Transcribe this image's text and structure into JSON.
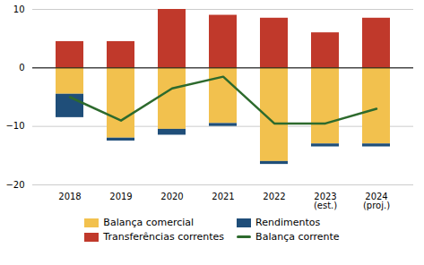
{
  "chart_data": {
    "type": "bar",
    "categories": [
      "2018",
      "2019",
      "2020",
      "2021",
      "2022",
      "2023\n(est.)",
      "2024\n(proj.)"
    ],
    "series": [
      {
        "name": "Balança comercial",
        "type": "bar",
        "color": "#F2C14E",
        "values": [
          -4.5,
          -12.0,
          -10.5,
          -9.5,
          -16.0,
          -13.0,
          -13.0
        ]
      },
      {
        "name": "Rendimentos",
        "type": "bar",
        "color": "#1F4E79",
        "values": [
          -4.0,
          -0.5,
          -1.0,
          -0.5,
          -0.5,
          -0.5,
          -0.5
        ]
      },
      {
        "name": "Transferências correntes",
        "type": "bar",
        "color": "#C0392B",
        "values": [
          4.5,
          4.5,
          10.0,
          9.0,
          8.5,
          6.0,
          8.5
        ]
      },
      {
        "name": "Balança corrente",
        "type": "line",
        "color": "#2D6A2D",
        "values": [
          -5.0,
          -9.0,
          -3.5,
          -1.5,
          -9.5,
          -9.5,
          -7.0
        ]
      }
    ],
    "stacked": true,
    "ylim": [
      -20,
      10
    ],
    "yticks": [
      -20,
      -10,
      0,
      10
    ],
    "grid": true,
    "legend": "bottom"
  }
}
